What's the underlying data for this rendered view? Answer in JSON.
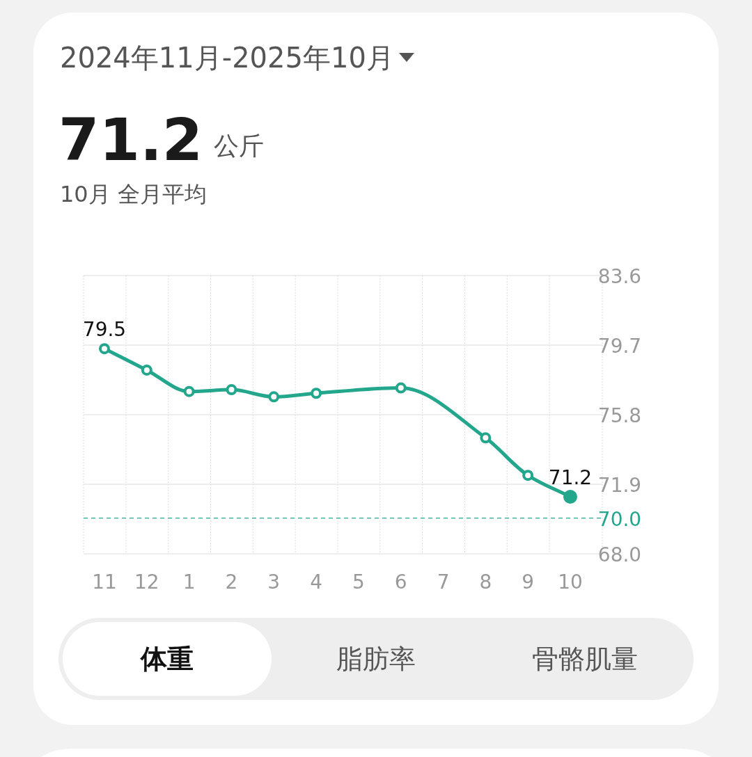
{
  "chart_data": {
    "type": "line",
    "title": "2024年11月-2025年10月",
    "categories": [
      "11",
      "12",
      "1",
      "2",
      "3",
      "4",
      "5",
      "6",
      "7",
      "8",
      "9",
      "10"
    ],
    "series": [
      {
        "color": "#22a68c",
        "values": [
          79.5,
          78.3,
          77.1,
          77.2,
          76.8,
          77.0,
          null,
          77.3,
          null,
          74.5,
          72.4,
          71.2
        ],
        "value_labels": [
          "79.5",
          null,
          null,
          null,
          null,
          null,
          null,
          null,
          null,
          null,
          null,
          "71.2"
        ]
      }
    ],
    "ylim": [
      68.0,
      83.6
    ],
    "yticks": [
      {
        "value": 68.0,
        "label": "68.0"
      },
      79.7,
      75.8,
      71.9,
      83.6
    ],
    "ref_lines": [
      {
        "axis": "y",
        "value": 70.0,
        "label": "70.0",
        "color": "#22a68c",
        "line_style": "dashed"
      }
    ],
    "grid": true,
    "marker": "circle",
    "line_style": "solid",
    "annotations": [
      "71.2",
      "公斤",
      "10月 全月平均",
      "体重",
      "脂肪率",
      "骨骼肌量"
    ]
  }
}
